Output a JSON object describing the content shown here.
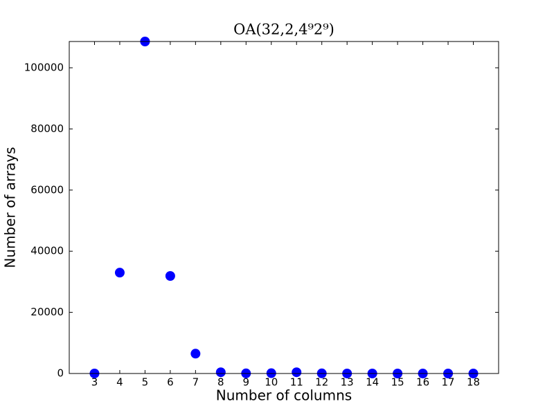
{
  "chart_data": {
    "type": "scatter",
    "title": "OA(32,2,4⁹2⁹)",
    "x_label": "Number of columns",
    "y_label": "Number of arrays",
    "x": [
      3,
      4,
      5,
      6,
      7,
      8,
      9,
      10,
      11,
      12,
      13,
      14,
      15,
      16,
      17,
      18
    ],
    "values": [
      10,
      33000,
      108600,
      31900,
      6500,
      400,
      50,
      100,
      400,
      50,
      10,
      0,
      0,
      0,
      0,
      0
    ],
    "color": "#0000ff",
    "xlim": [
      2,
      19
    ],
    "xticks": [
      3,
      4,
      5,
      6,
      7,
      8,
      9,
      10,
      11,
      12,
      13,
      14,
      15,
      16,
      17,
      18
    ],
    "ylim": [
      0,
      108600
    ],
    "yticks": [
      0,
      20000,
      40000,
      60000,
      80000,
      100000
    ]
  }
}
